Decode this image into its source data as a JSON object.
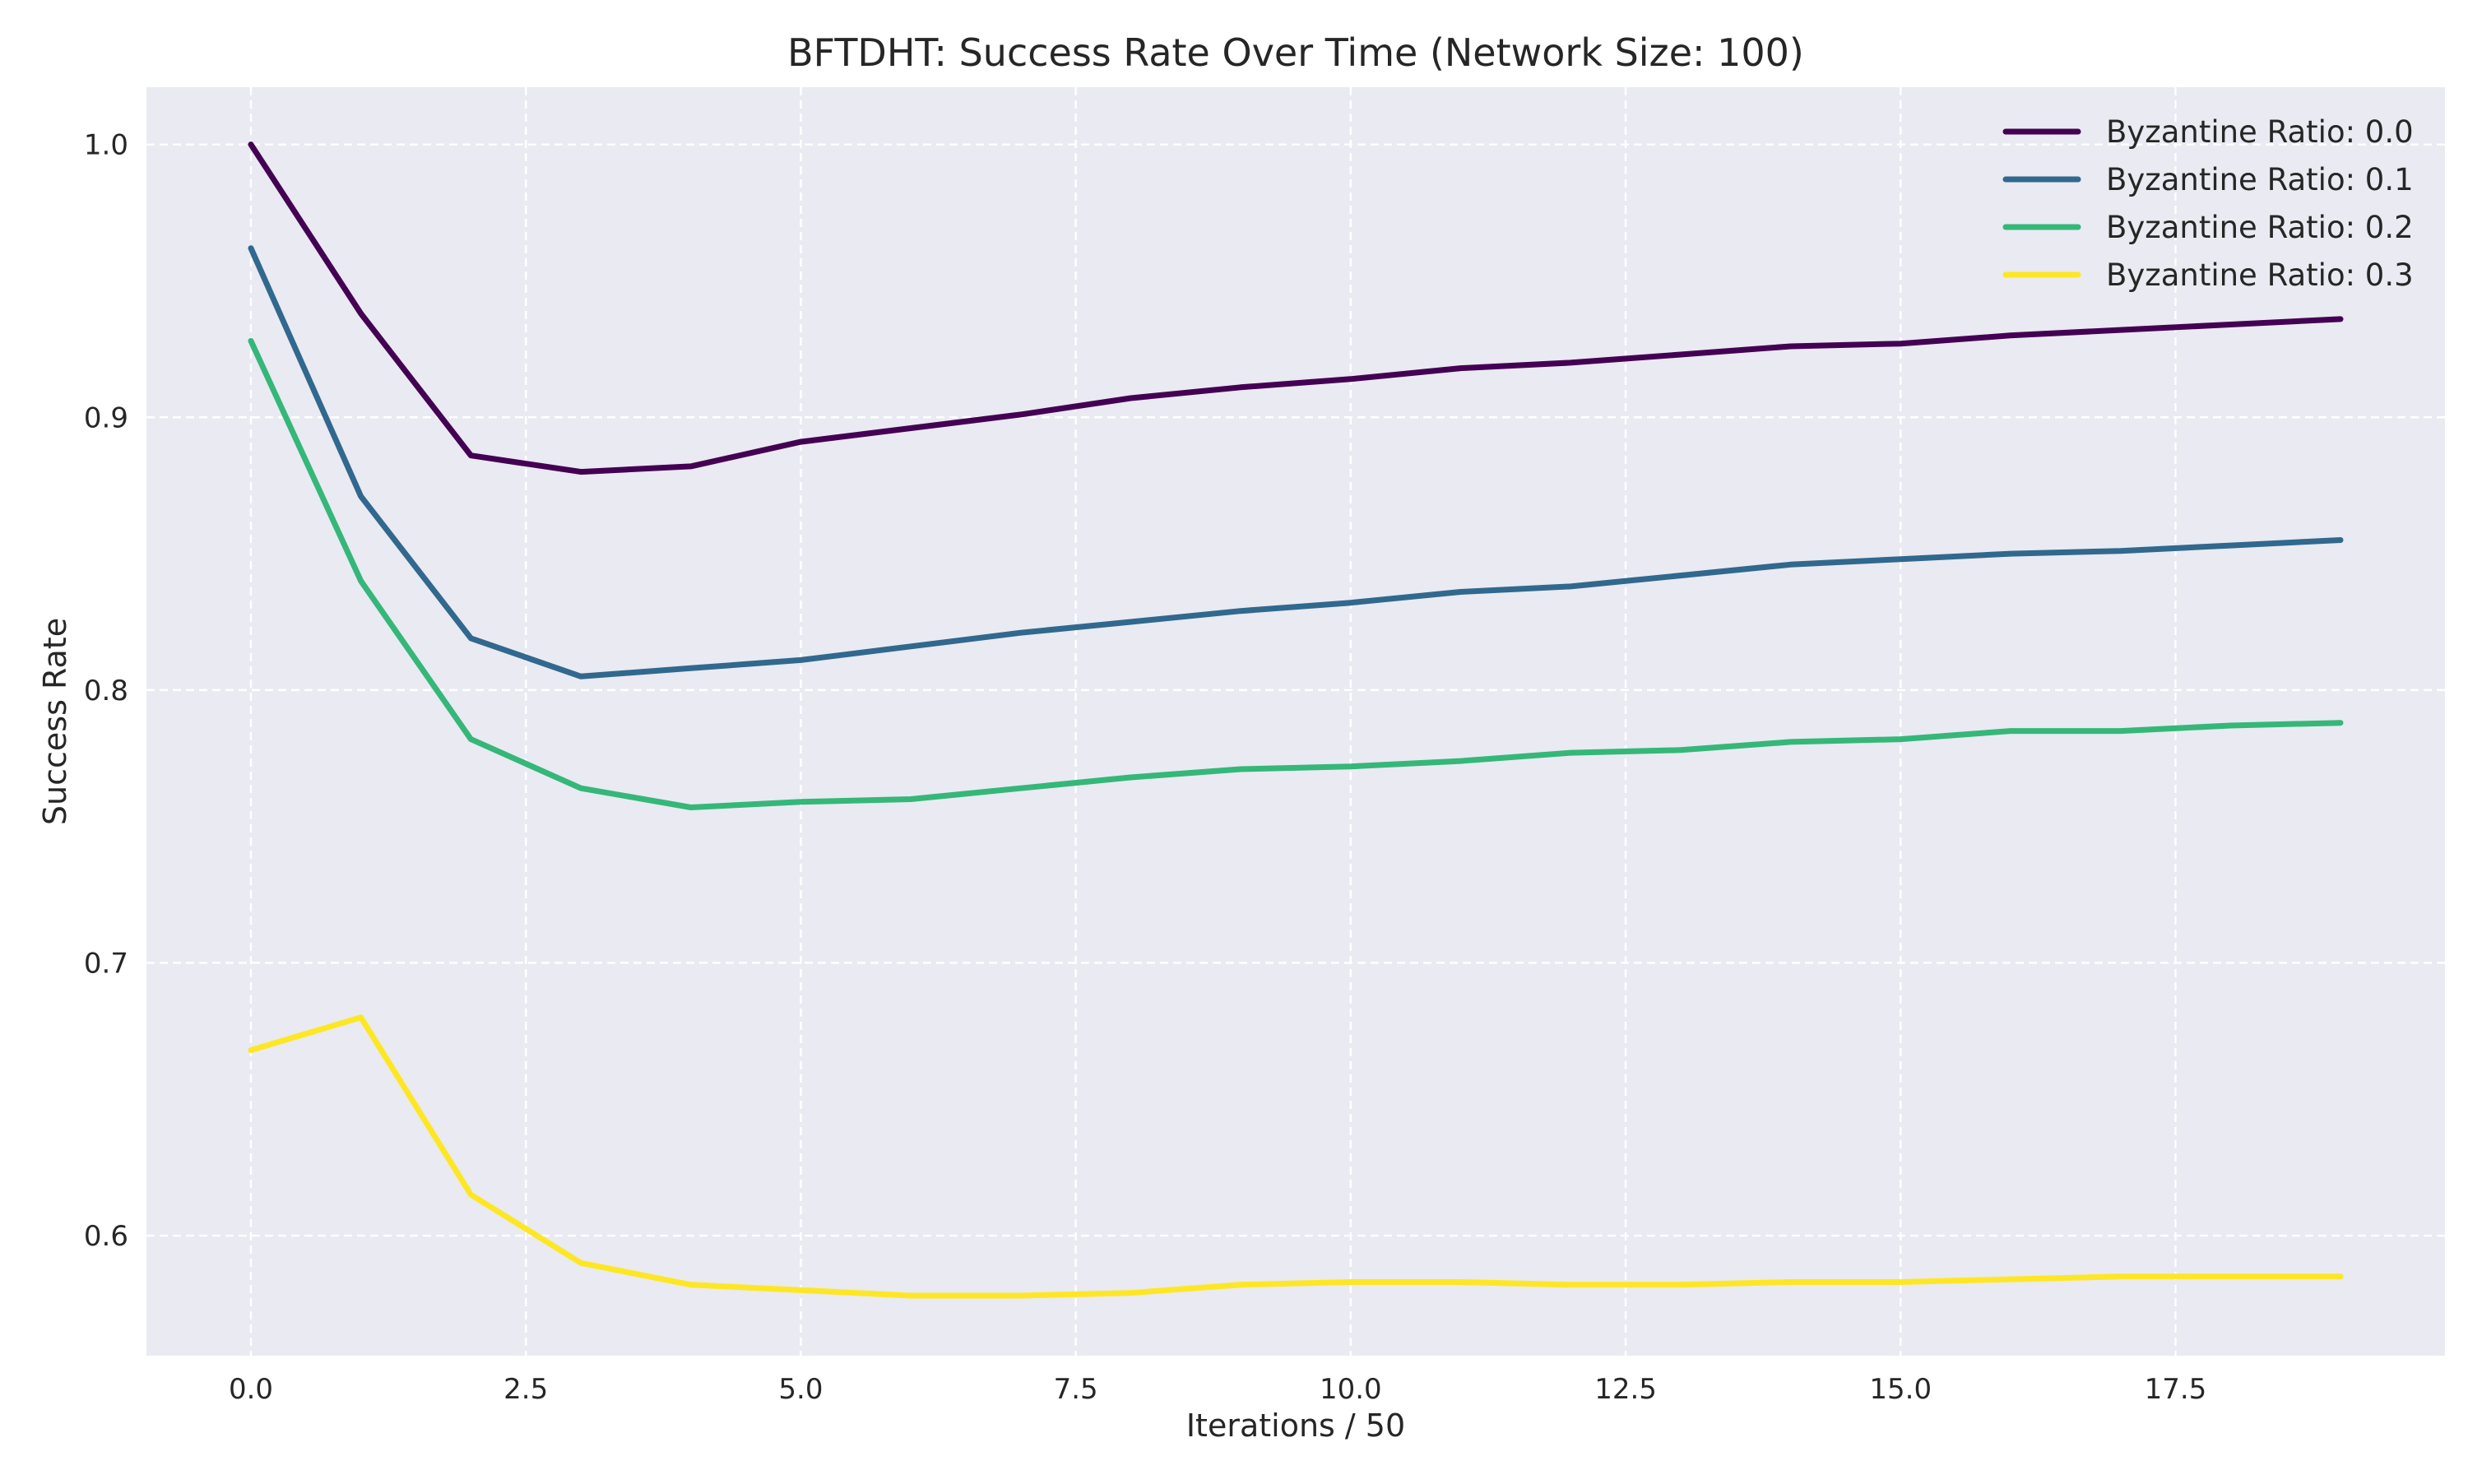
{
  "chart_data": {
    "type": "line",
    "title": "BFTDHT: Success Rate Over Time (Network Size: 100)",
    "xlabel": "Iterations / 50",
    "ylabel": "Success Rate",
    "x": [
      0,
      1,
      2,
      3,
      4,
      5,
      6,
      7,
      8,
      9,
      10,
      11,
      12,
      13,
      14,
      15,
      16,
      17,
      18,
      19
    ],
    "xlim": [
      -0.95,
      19.95
    ],
    "ylim": [
      0.556,
      1.021
    ],
    "xticks": [
      0.0,
      2.5,
      5.0,
      7.5,
      10.0,
      12.5,
      15.0,
      17.5
    ],
    "xtick_labels": [
      "0.0",
      "2.5",
      "5.0",
      "7.5",
      "10.0",
      "12.5",
      "15.0",
      "17.5"
    ],
    "yticks": [
      0.6,
      0.7,
      0.8,
      0.9,
      1.0
    ],
    "ytick_labels": [
      "0.6",
      "0.7",
      "0.8",
      "0.9",
      "1.0"
    ],
    "grid": true,
    "legend_position": "top-right",
    "background_color": "#eaeaf2",
    "grid_color": "#ffffff",
    "series": [
      {
        "name": "Byzantine Ratio: 0.0",
        "color": "#440154",
        "values": [
          1.0,
          0.938,
          0.886,
          0.88,
          0.882,
          0.891,
          0.896,
          0.901,
          0.907,
          0.911,
          0.914,
          0.918,
          0.92,
          0.923,
          0.926,
          0.927,
          0.93,
          0.932,
          0.934,
          0.936
        ]
      },
      {
        "name": "Byzantine Ratio: 0.1",
        "color": "#31688e",
        "values": [
          0.962,
          0.871,
          0.819,
          0.805,
          0.808,
          0.811,
          0.816,
          0.821,
          0.825,
          0.829,
          0.832,
          0.836,
          0.838,
          0.842,
          0.846,
          0.848,
          0.85,
          0.851,
          0.853,
          0.855
        ]
      },
      {
        "name": "Byzantine Ratio: 0.2",
        "color": "#35b779",
        "values": [
          0.928,
          0.84,
          0.782,
          0.764,
          0.757,
          0.759,
          0.76,
          0.764,
          0.768,
          0.771,
          0.772,
          0.774,
          0.777,
          0.778,
          0.781,
          0.782,
          0.785,
          0.785,
          0.787,
          0.788
        ]
      },
      {
        "name": "Byzantine Ratio: 0.3",
        "color": "#fde725",
        "values": [
          0.668,
          0.68,
          0.615,
          0.59,
          0.582,
          0.58,
          0.578,
          0.578,
          0.579,
          0.582,
          0.583,
          0.583,
          0.582,
          0.582,
          0.583,
          0.583,
          0.584,
          0.585,
          0.585,
          0.585
        ]
      }
    ]
  }
}
